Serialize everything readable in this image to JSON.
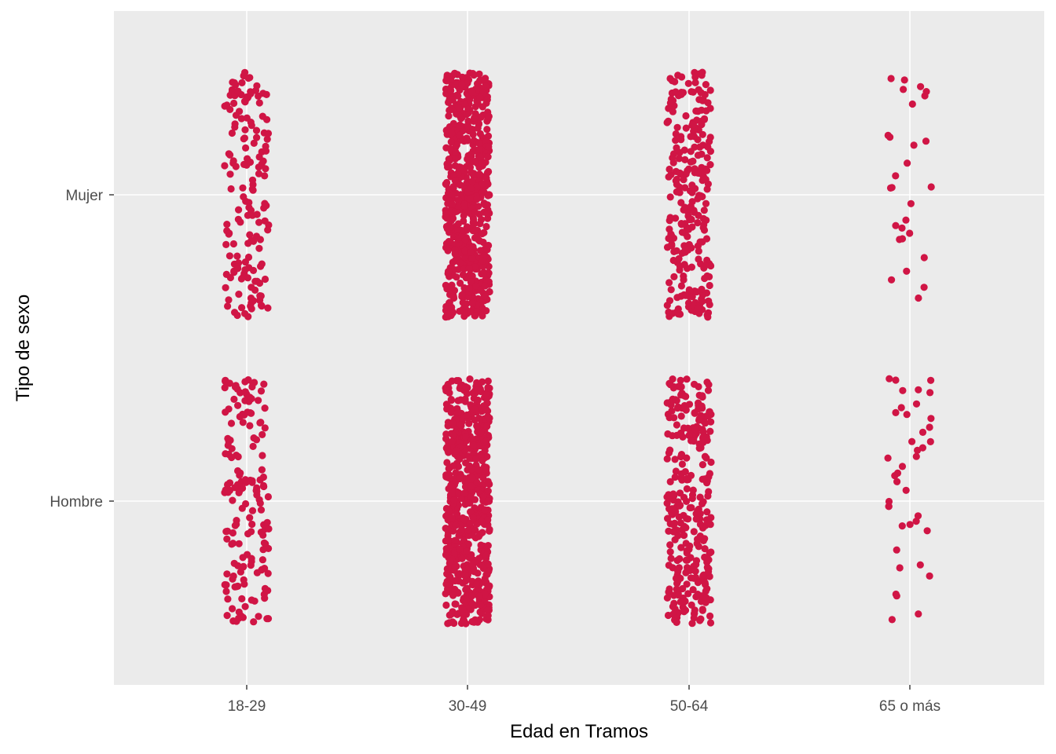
{
  "chart_data": {
    "type": "scatter",
    "subtype": "jitter strip plot",
    "title": "",
    "xlabel": "Edad en Tramos",
    "ylabel": "Tipo de sexo",
    "x_categories": [
      "18-29",
      "30-49",
      "50-64",
      "65 o más"
    ],
    "y_categories": [
      "Hombre",
      "Mujer"
    ],
    "grid": true,
    "legend": "none",
    "point_color": "#D01545",
    "panel_background": "#EBEBEB",
    "grid_color": "#FFFFFF",
    "jitter": {
      "x": 0.1,
      "y": 0.4
    },
    "approx_point_counts": [
      {
        "x": "18-29",
        "y": "Mujer",
        "n": 160
      },
      {
        "x": "18-29",
        "y": "Hombre",
        "n": 165
      },
      {
        "x": "30-49",
        "y": "Mujer",
        "n": 620
      },
      {
        "x": "30-49",
        "y": "Hombre",
        "n": 640
      },
      {
        "x": "50-64",
        "y": "Mujer",
        "n": 250
      },
      {
        "x": "50-64",
        "y": "Hombre",
        "n": 300
      },
      {
        "x": "65 o más",
        "y": "Mujer",
        "n": 28
      },
      {
        "x": "65 o más",
        "y": "Hombre",
        "n": 40
      }
    ]
  }
}
